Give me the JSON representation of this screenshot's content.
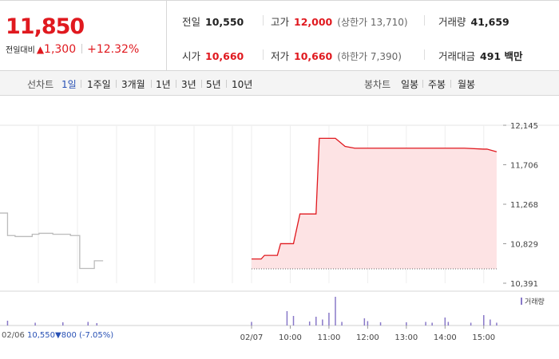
{
  "summary": {
    "price": "11,850",
    "change_label": "전일대비",
    "change_arrow": "▲",
    "change": "1,300",
    "change_pct": "+12.32%",
    "prev_close_label": "전일",
    "prev_close": "10,550",
    "open_label": "시가",
    "open": "10,660",
    "high_label": "고가",
    "high": "12,000",
    "upper_limit": "(상한가 13,710)",
    "low_label": "저가",
    "low": "10,660",
    "lower_limit": "(하한가 7,390)",
    "volume_label": "거래량",
    "volume": "41,659",
    "trade_value_label": "거래대금",
    "trade_value": "491 백만"
  },
  "period": {
    "line_label": "선차트",
    "line_options": [
      "1일",
      "1주일",
      "3개월",
      "1년",
      "3년",
      "5년",
      "10년"
    ],
    "selected": "1일",
    "candle_label": "봉차트",
    "candle_options": [
      "일봉",
      "주봉",
      "월봉"
    ]
  },
  "colors": {
    "up": "#e0191f",
    "down": "#2851b5",
    "up_fill": "#fde3e4",
    "prev_line": "#bbbbbb",
    "volume": "#8878c8"
  },
  "chart_data": {
    "type": "line",
    "y_ticks": [
      "12,145",
      "11,706",
      "11,268",
      "10,829",
      "10,391"
    ],
    "ylim": [
      10391,
      12145
    ],
    "x_ticks": [
      "02/06",
      "02/07",
      "10:00",
      "11:00",
      "12:00",
      "13:00",
      "14:00",
      "15:00"
    ],
    "prev_day_readout": {
      "date": "02/06",
      "close": "10,550",
      "arrow": "▼",
      "change": "800",
      "pct": "(-7.05%)"
    },
    "reference_price": 10550,
    "volume_label": "거래량",
    "series": [
      {
        "day": "02/06",
        "points": [
          [
            0,
            11170
          ],
          [
            0.03,
            11170
          ],
          [
            0.03,
            10920
          ],
          [
            0.06,
            10920
          ],
          [
            0.06,
            10910
          ],
          [
            0.128,
            10910
          ],
          [
            0.128,
            10935
          ],
          [
            0.155,
            10935
          ],
          [
            0.155,
            10945
          ],
          [
            0.21,
            10945
          ],
          [
            0.21,
            10935
          ],
          [
            0.28,
            10935
          ],
          [
            0.28,
            10920
          ],
          [
            0.317,
            10920
          ],
          [
            0.317,
            10555
          ],
          [
            0.375,
            10555
          ],
          [
            0.375,
            10640
          ],
          [
            0.41,
            10640
          ],
          [
            0.41,
            10640
          ]
        ]
      },
      {
        "day": "02/07",
        "points": [
          [
            "09:00",
            10660
          ],
          [
            "09:05",
            10660
          ],
          [
            "09:15",
            10660
          ],
          [
            "09:20",
            10700
          ],
          [
            "09:30",
            10700
          ],
          [
            "09:40",
            10700
          ],
          [
            "09:45",
            10830
          ],
          [
            "09:55",
            10830
          ],
          [
            "10:00",
            10830
          ],
          [
            "10:05",
            10830
          ],
          [
            "10:15",
            11160
          ],
          [
            "10:35",
            11160
          ],
          [
            "10:40",
            11160
          ],
          [
            "10:45",
            12000
          ],
          [
            "10:55",
            12000
          ],
          [
            "11:00",
            12000
          ],
          [
            "11:10",
            12000
          ],
          [
            "11:25",
            11910
          ],
          [
            "11:40",
            11890
          ],
          [
            "12:00",
            11890
          ],
          [
            "12:30",
            11890
          ],
          [
            "13:00",
            11890
          ],
          [
            "13:30",
            11890
          ],
          [
            "14:00",
            11890
          ],
          [
            "14:30",
            11890
          ],
          [
            "15:00",
            11880
          ],
          [
            "15:05",
            11880
          ],
          [
            "15:20",
            11850
          ]
        ]
      }
    ],
    "volume_bars": [
      {
        "t": 0.03,
        "v": 1200
      },
      {
        "t": 0.14,
        "v": 700
      },
      {
        "t": 0.25,
        "v": 800
      },
      {
        "t": 0.35,
        "v": 900
      },
      {
        "t": 0.385,
        "v": 600
      },
      {
        "t": "09:00",
        "v": 900
      },
      {
        "t": "09:55",
        "v": 3600
      },
      {
        "t": "10:05",
        "v": 2400
      },
      {
        "t": "10:30",
        "v": 1000
      },
      {
        "t": "10:40",
        "v": 2200
      },
      {
        "t": "10:50",
        "v": 1500
      },
      {
        "t": "11:00",
        "v": 3200
      },
      {
        "t": "11:10",
        "v": 7200
      },
      {
        "t": "11:20",
        "v": 900
      },
      {
        "t": "11:55",
        "v": 1800
      },
      {
        "t": "12:00",
        "v": 1100
      },
      {
        "t": "12:20",
        "v": 800
      },
      {
        "t": "13:00",
        "v": 800
      },
      {
        "t": "13:30",
        "v": 900
      },
      {
        "t": "13:40",
        "v": 700
      },
      {
        "t": "14:00",
        "v": 2000
      },
      {
        "t": "14:05",
        "v": 900
      },
      {
        "t": "14:40",
        "v": 700
      },
      {
        "t": "15:00",
        "v": 2600
      },
      {
        "t": "15:10",
        "v": 1500
      },
      {
        "t": "15:20",
        "v": 700
      }
    ]
  }
}
